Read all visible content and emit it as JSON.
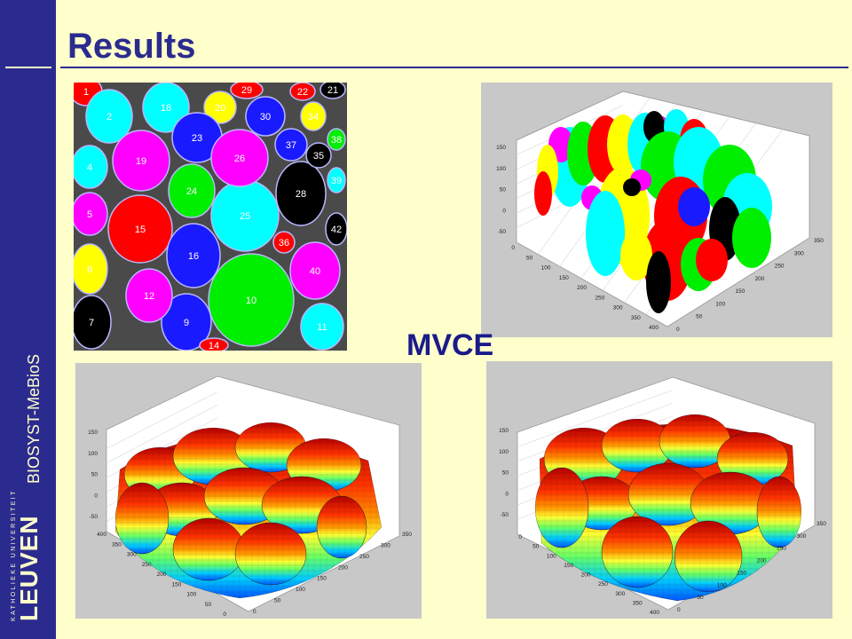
{
  "slide": {
    "title": "Results",
    "side_text": "BIOSYST-MeBioS",
    "logo_small": "KATHOLIEKE UNIVERSITEIT",
    "logo_big": "LEUVEN",
    "center_label": "MVCE"
  },
  "segmentation": {
    "cells": [
      {
        "label": "1",
        "color": "#ff0000"
      },
      {
        "label": "2",
        "color": "#00ffff"
      },
      {
        "label": "4",
        "color": "#00ffff"
      },
      {
        "label": "5",
        "color": "#ff00ff"
      },
      {
        "label": "6",
        "color": "#ffff00"
      },
      {
        "label": "7",
        "color": "#000000"
      },
      {
        "label": "9",
        "color": "#1a1aff"
      },
      {
        "label": "10",
        "color": "#00ee00"
      },
      {
        "label": "11",
        "color": "#00ffff"
      },
      {
        "label": "12",
        "color": "#ff00ff"
      },
      {
        "label": "14",
        "color": "#ff0000"
      },
      {
        "label": "15",
        "color": "#ff0000"
      },
      {
        "label": "16",
        "color": "#1a1aff"
      },
      {
        "label": "18",
        "color": "#00ffff"
      },
      {
        "label": "19",
        "color": "#ff00ff"
      },
      {
        "label": "20",
        "color": "#ffff00"
      },
      {
        "label": "21",
        "color": "#000000"
      },
      {
        "label": "22",
        "color": "#ff0000"
      },
      {
        "label": "23",
        "color": "#1a1aff"
      },
      {
        "label": "24",
        "color": "#00ee00"
      },
      {
        "label": "25",
        "color": "#00ffff"
      },
      {
        "label": "26",
        "color": "#ff00ff"
      },
      {
        "label": "28",
        "color": "#000000"
      },
      {
        "label": "29",
        "color": "#ff0000"
      },
      {
        "label": "30",
        "color": "#1a1aff"
      },
      {
        "label": "34",
        "color": "#ffff00"
      },
      {
        "label": "35",
        "color": "#000000"
      },
      {
        "label": "36",
        "color": "#ff0000"
      },
      {
        "label": "37",
        "color": "#1a1aff"
      },
      {
        "label": "38",
        "color": "#00ee00"
      },
      {
        "label": "39",
        "color": "#00ffff"
      },
      {
        "label": "40",
        "color": "#ff00ff"
      },
      {
        "label": "42",
        "color": "#000000"
      }
    ]
  },
  "plot_top_right": {
    "z_ticks": [
      "150",
      "100",
      "50",
      "0",
      "-50"
    ],
    "y_ticks": [
      "0",
      "50",
      "100",
      "150",
      "200",
      "250",
      "300",
      "350",
      "400"
    ],
    "x_ticks": [
      "0",
      "50",
      "100",
      "150",
      "200",
      "250",
      "300",
      "350"
    ]
  },
  "plot_bottom_left": {
    "z_ticks": [
      "150",
      "100",
      "50",
      "0",
      "-50"
    ],
    "y_ticks": [
      "400",
      "350",
      "300",
      "250",
      "200",
      "150",
      "100",
      "50",
      "0"
    ],
    "x_ticks": [
      "0",
      "50",
      "100",
      "150",
      "200",
      "250",
      "300",
      "350"
    ]
  },
  "plot_bottom_right": {
    "z_ticks": [
      "150",
      "100",
      "50",
      "0",
      "-50"
    ],
    "y_ticks": [
      "0",
      "50",
      "100",
      "150",
      "200",
      "250",
      "300",
      "350",
      "400"
    ],
    "x_ticks": [
      "0",
      "50",
      "100",
      "150",
      "200",
      "250",
      "300",
      "350"
    ]
  }
}
